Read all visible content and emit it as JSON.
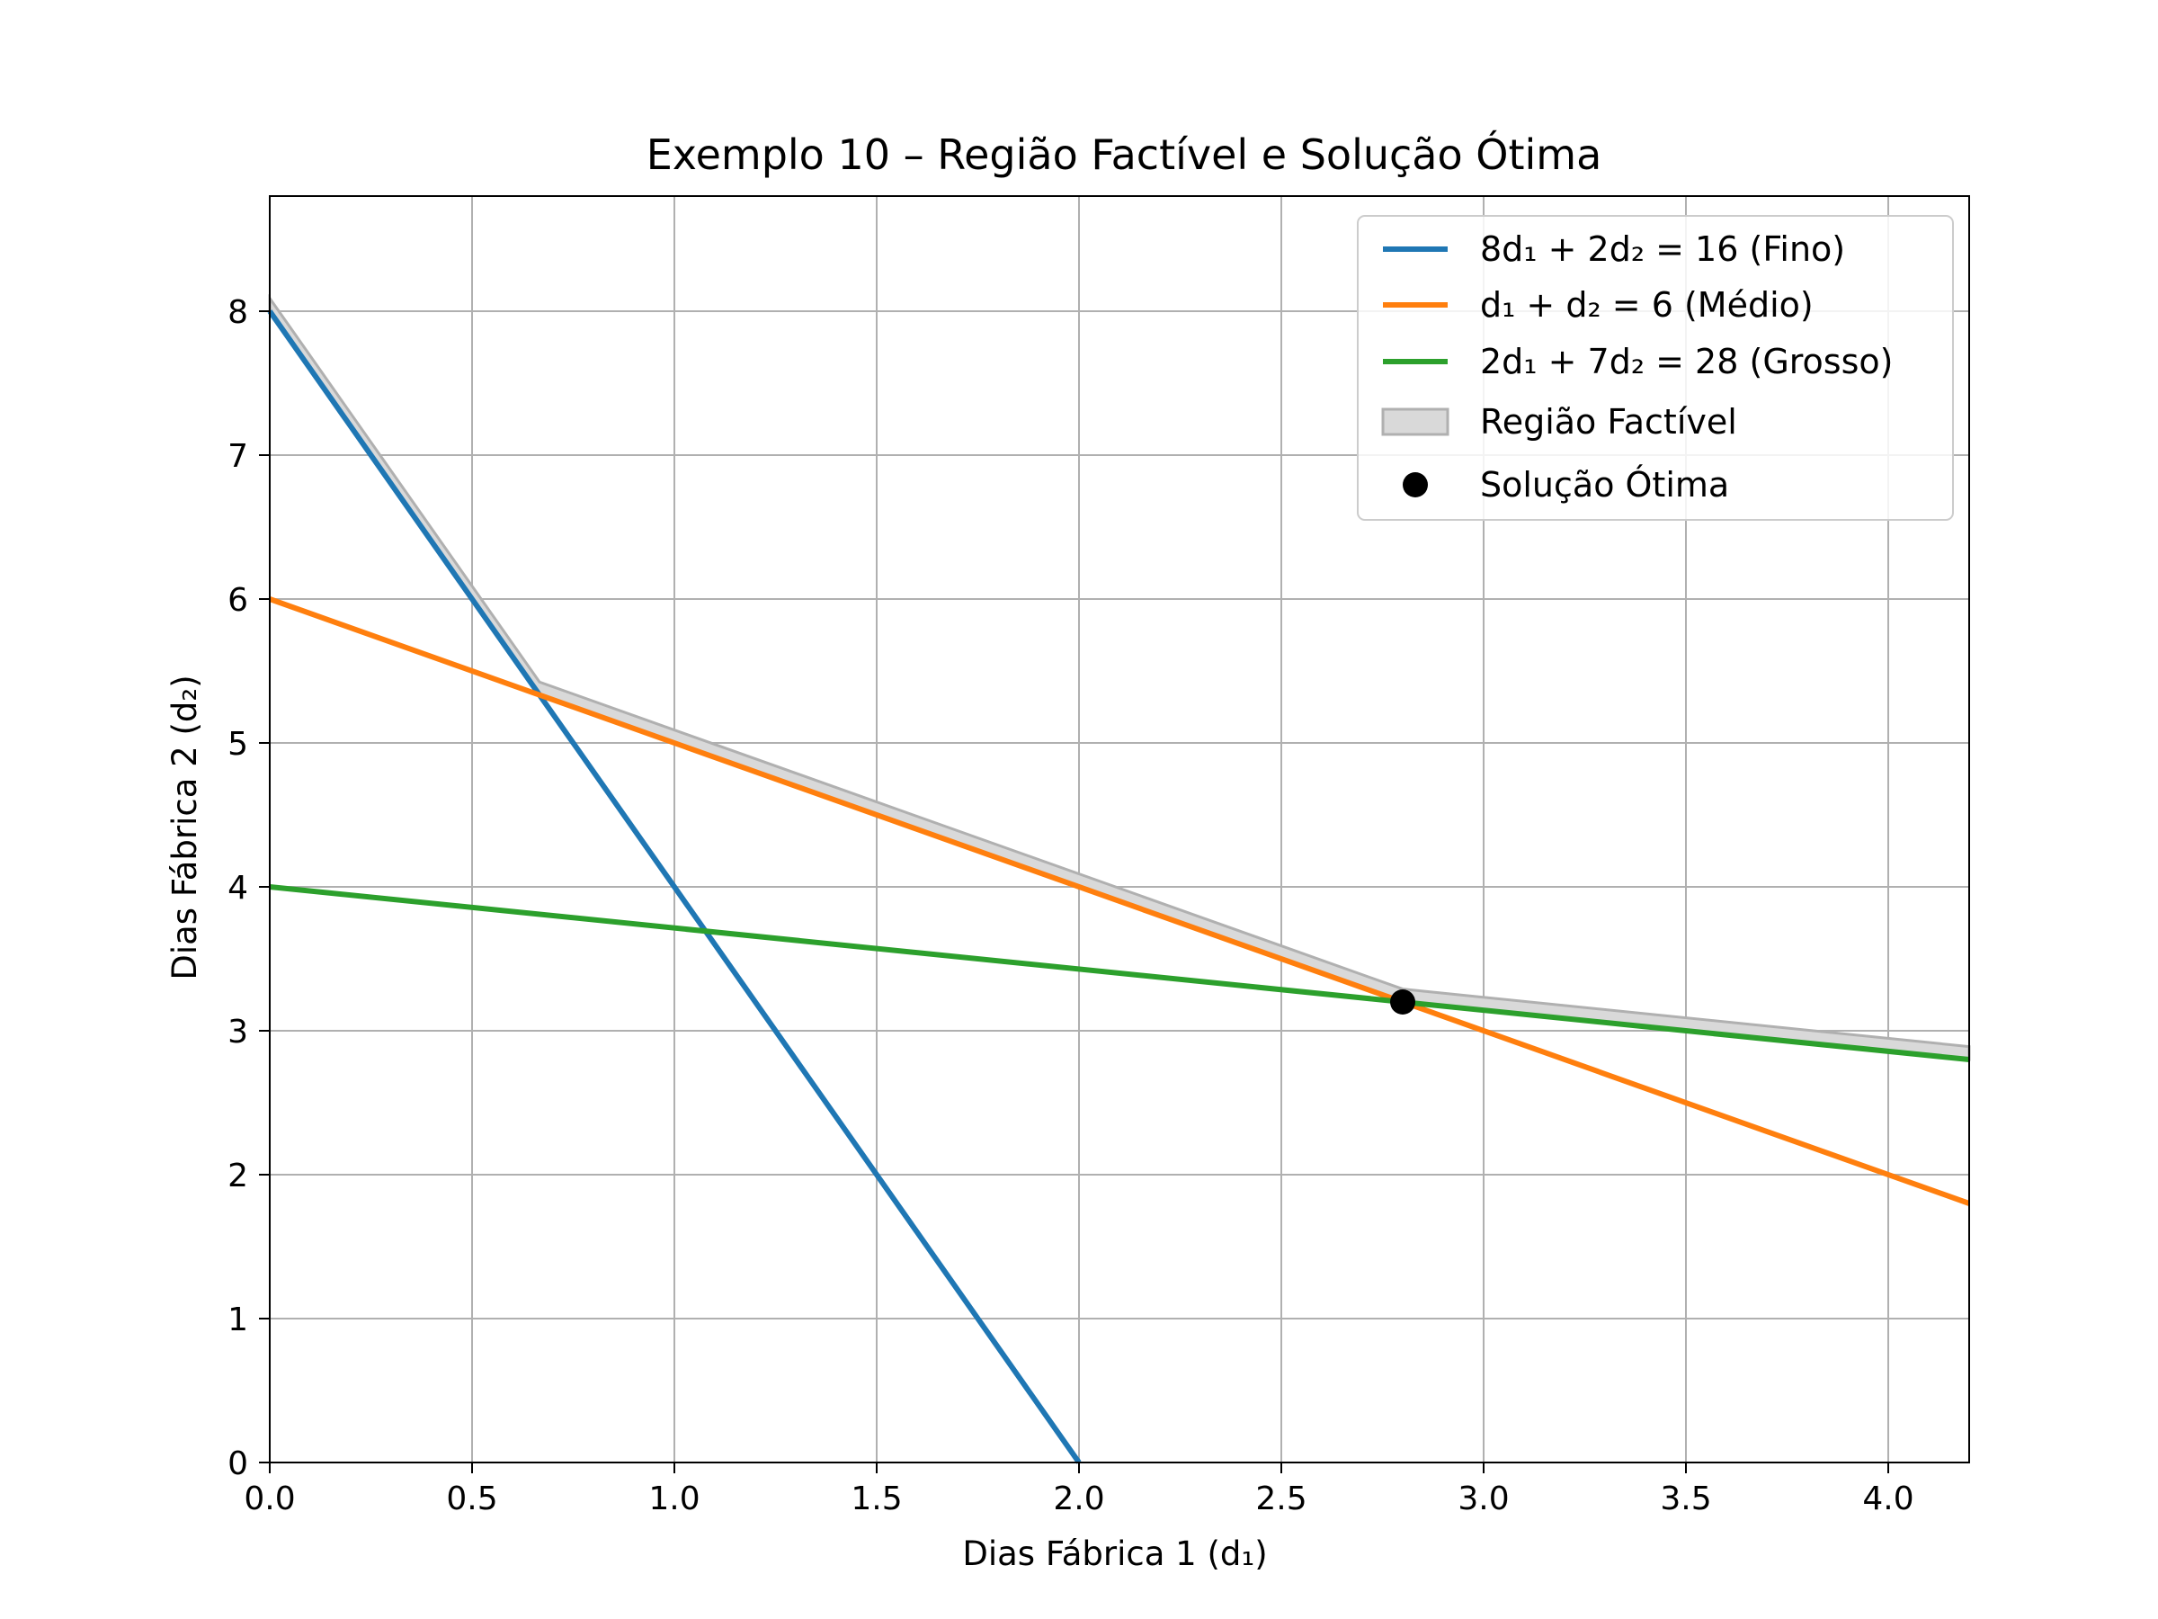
{
  "chart_data": {
    "type": "line",
    "title": "Exemplo 10 – Região Factível e Solução Ótima",
    "xlabel": "Dias Fábrica 1 (d₁)",
    "ylabel": "Dias Fábrica 2 (d₂)",
    "xlim": [
      0,
      4.2
    ],
    "ylim": [
      0,
      8.8
    ],
    "x_ticks": [
      0.0,
      0.5,
      1.0,
      1.5,
      2.0,
      2.5,
      3.0,
      3.5,
      4.0
    ],
    "x_tick_labels": [
      "0.0",
      "0.5",
      "1.0",
      "1.5",
      "2.0",
      "2.5",
      "3.0",
      "3.5",
      "4.0"
    ],
    "y_ticks": [
      0,
      1,
      2,
      3,
      4,
      5,
      6,
      7,
      8
    ],
    "y_tick_labels": [
      "0",
      "1",
      "2",
      "3",
      "4",
      "5",
      "6",
      "7",
      "8"
    ],
    "grid": true,
    "legend_position": "top-right",
    "series": [
      {
        "name": "8d₁ + 2d₂ = 16 (Fino)",
        "color": "#1f77b4",
        "x": [
          0,
          2
        ],
        "y": [
          8,
          0
        ]
      },
      {
        "name": "d₁ + d₂ = 6 (Médio)",
        "color": "#ff7f0e",
        "x": [
          0,
          4.2
        ],
        "y": [
          6,
          1.8
        ]
      },
      {
        "name": "2d₁ + 7d₂ = 28 (Grosso)",
        "color": "#2ca02c",
        "x": [
          0,
          4.2
        ],
        "y": [
          4,
          2.8
        ]
      }
    ],
    "feasible_region": {
      "name": "Região Factível",
      "color": "#d9d9d9",
      "edge_color": "#b0b0b0",
      "boundary": [
        [
          0,
          8
        ],
        [
          0.6667,
          5.3333
        ],
        [
          2.8,
          3.2
        ],
        [
          4.2,
          2.8
        ]
      ]
    },
    "optimal_point": {
      "name": "Solução Ótima",
      "color": "#000000",
      "x": 2.8,
      "y": 3.2
    }
  }
}
